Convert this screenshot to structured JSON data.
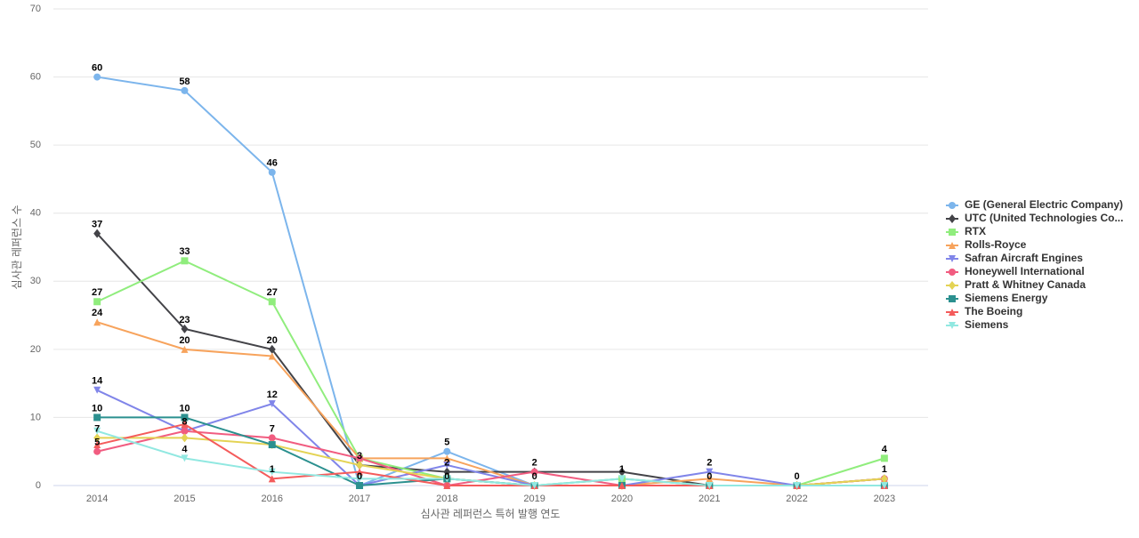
{
  "chart_data": {
    "type": "line",
    "y_axis_title": "심사관 레퍼런스 수",
    "x_axis_title": "심사관 레퍼런스 특허 발행 연도",
    "categories": [
      "2014",
      "2015",
      "2016",
      "2017",
      "2018",
      "2019",
      "2020",
      "2021",
      "2022",
      "2023"
    ],
    "ylim": [
      0,
      70
    ],
    "yticks": [
      0,
      10,
      20,
      30,
      40,
      50,
      60,
      70
    ],
    "grid": true,
    "data_labels": true,
    "legend": "right",
    "series": [
      {
        "name": "GE (General Electric Company)",
        "color": "#7cb5ec",
        "marker": "circle",
        "values": [
          60,
          58,
          46,
          0,
          5,
          0,
          1,
          0,
          0,
          1
        ]
      },
      {
        "name": "UTC (United Technologies Co...",
        "color": "#434348",
        "marker": "diamond",
        "values": [
          37,
          23,
          20,
          3,
          2,
          2,
          2,
          0,
          0,
          1
        ]
      },
      {
        "name": "RTX",
        "color": "#90ed7d",
        "marker": "square",
        "values": [
          27,
          33,
          27,
          4,
          1,
          0,
          1,
          0,
          0,
          4
        ]
      },
      {
        "name": "Rolls-Royce",
        "color": "#f7a35c",
        "marker": "triangle",
        "values": [
          24,
          20,
          19,
          4,
          4,
          0,
          0,
          1,
          0,
          1
        ]
      },
      {
        "name": "Safran Aircraft Engines",
        "color": "#8085e9",
        "marker": "triangle-down",
        "values": [
          14,
          8,
          12,
          0,
          3,
          0,
          0,
          2,
          0,
          0
        ]
      },
      {
        "name": "Honeywell International",
        "color": "#f15c80",
        "marker": "circle",
        "values": [
          5,
          8,
          7,
          4,
          0,
          2,
          0,
          0,
          0,
          1
        ]
      },
      {
        "name": "Pratt & Whitney Canada",
        "color": "#e4d354",
        "marker": "diamond",
        "values": [
          7,
          7,
          6,
          3,
          1,
          0,
          0,
          0,
          0,
          1
        ]
      },
      {
        "name": "Siemens Energy",
        "color": "#2b908f",
        "marker": "square",
        "values": [
          10,
          10,
          6,
          0,
          1,
          0,
          0,
          0,
          0,
          0
        ]
      },
      {
        "name": "The Boeing",
        "color": "#f45b5b",
        "marker": "triangle",
        "values": [
          6,
          9,
          1,
          2,
          0,
          0,
          0,
          0,
          0,
          0
        ]
      },
      {
        "name": "Siemens",
        "color": "#91e8e1",
        "marker": "triangle-down",
        "values": [
          8,
          4,
          2,
          1,
          1,
          0,
          1,
          0,
          0,
          0
        ]
      }
    ]
  }
}
